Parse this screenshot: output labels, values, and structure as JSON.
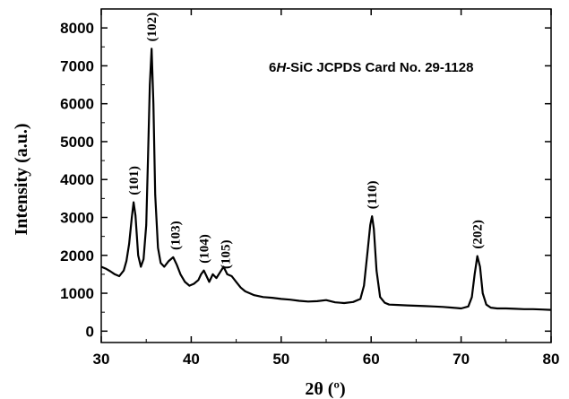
{
  "chart_data": {
    "type": "line",
    "title": "",
    "xlabel": "2θ (º)",
    "ylabel": "Intensity (a.u.)",
    "xlim": [
      30,
      80
    ],
    "ylim": [
      -300,
      8500
    ],
    "x_ticks": [
      30,
      40,
      50,
      60,
      70,
      80
    ],
    "y_ticks": [
      0,
      1000,
      2000,
      3000,
      4000,
      5000,
      6000,
      7000,
      8000
    ],
    "grid": false,
    "annotation": {
      "prefix": "6",
      "italic": "H",
      "suffix": "-SiC JCPDS Card No. 29-1128"
    },
    "peaks": [
      {
        "label": "(101)",
        "x": 33.6,
        "y": 3400
      },
      {
        "label": "(102)",
        "x": 35.6,
        "y": 7450
      },
      {
        "label": "(103)",
        "x": 38.2,
        "y": 1950
      },
      {
        "label": "(104)",
        "x": 41.4,
        "y": 1600
      },
      {
        "label": "(105)",
        "x": 43.8,
        "y": 1450
      },
      {
        "label": "(110)",
        "x": 60.1,
        "y": 3030
      },
      {
        "label": "(202)",
        "x": 71.8,
        "y": 1980
      }
    ],
    "series": [
      {
        "color": "#000000",
        "x": [
          30,
          30.5,
          31,
          31.5,
          32,
          32.5,
          32.8,
          33.1,
          33.4,
          33.6,
          33.8,
          34.1,
          34.4,
          34.7,
          35.0,
          35.2,
          35.4,
          35.6,
          35.8,
          36.0,
          36.3,
          36.6,
          37.0,
          37.5,
          38.0,
          38.4,
          38.8,
          39.3,
          39.8,
          40.3,
          40.8,
          41.1,
          41.4,
          41.7,
          42.0,
          42.4,
          42.8,
          43.2,
          43.6,
          44.0,
          44.5,
          45.0,
          45.5,
          46,
          47,
          48,
          49,
          50,
          51,
          52,
          53,
          54,
          55,
          56,
          57,
          58,
          58.8,
          59.2,
          59.6,
          59.9,
          60.1,
          60.3,
          60.6,
          61.0,
          61.5,
          62,
          63,
          64,
          65,
          66,
          67,
          68,
          69,
          70,
          70.8,
          71.2,
          71.5,
          71.8,
          72.1,
          72.4,
          72.8,
          73.3,
          74,
          75,
          76,
          77,
          78,
          79,
          80
        ],
        "y": [
          1700,
          1650,
          1580,
          1500,
          1450,
          1600,
          1850,
          2300,
          3000,
          3400,
          3050,
          2000,
          1700,
          1900,
          2800,
          4600,
          6500,
          7450,
          6000,
          3600,
          2200,
          1800,
          1700,
          1850,
          1950,
          1750,
          1500,
          1300,
          1200,
          1250,
          1350,
          1500,
          1600,
          1450,
          1300,
          1500,
          1400,
          1550,
          1700,
          1500,
          1450,
          1300,
          1150,
          1050,
          950,
          900,
          880,
          850,
          830,
          800,
          780,
          790,
          820,
          760,
          740,
          770,
          850,
          1200,
          2100,
          2800,
          3030,
          2700,
          1600,
          900,
          750,
          700,
          690,
          680,
          670,
          660,
          650,
          640,
          620,
          600,
          650,
          900,
          1500,
          1980,
          1700,
          1000,
          700,
          620,
          600,
          600,
          590,
          580,
          580,
          570,
          560
        ]
      }
    ]
  }
}
